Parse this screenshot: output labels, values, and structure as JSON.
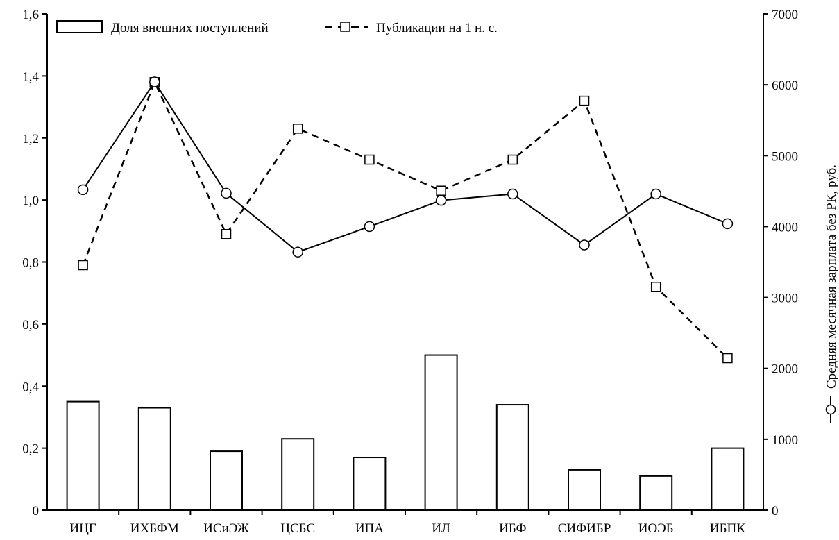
{
  "chart_data": {
    "type": "bar",
    "categories": [
      "ИЦГ",
      "ИХБФМ",
      "ИСиЭЖ",
      "ЦСБС",
      "ИПА",
      "ИЛ",
      "ИБФ",
      "СИФИБР",
      "ИОЭБ",
      "ИБПК"
    ],
    "left_axis": {
      "ylim": [
        0,
        1.6
      ],
      "ticks": [
        "0",
        "0,2",
        "0,4",
        "0,6",
        "0,8",
        "1,0",
        "1,2",
        "1,4",
        "1,6"
      ]
    },
    "right_axis": {
      "ylim": [
        0,
        7000
      ],
      "ticks": [
        "0",
        "1000",
        "2000",
        "3000",
        "4000",
        "5000",
        "6000",
        "7000"
      ],
      "label": "Средняя месячная зарплата без РК, руб."
    },
    "series": [
      {
        "name": "Доля внешних поступлений",
        "type": "bar",
        "axis": "left",
        "values": [
          0.35,
          0.33,
          0.19,
          0.23,
          0.17,
          0.5,
          0.34,
          0.13,
          0.11,
          0.2
        ]
      },
      {
        "name": "Публикации на 1 н. с.",
        "type": "line",
        "style": "dashed",
        "marker": "square",
        "axis": "left",
        "values": [
          0.79,
          1.38,
          0.89,
          1.23,
          1.13,
          1.03,
          1.13,
          1.32,
          0.72,
          0.49
        ]
      },
      {
        "name": "",
        "type": "line",
        "style": "solid",
        "marker": "circle",
        "axis": "right",
        "values": [
          4520,
          6040,
          4470,
          3640,
          4000,
          4370,
          4460,
          3740,
          4460,
          4040
        ]
      }
    ],
    "legend_position": "top-left",
    "grid": false
  }
}
